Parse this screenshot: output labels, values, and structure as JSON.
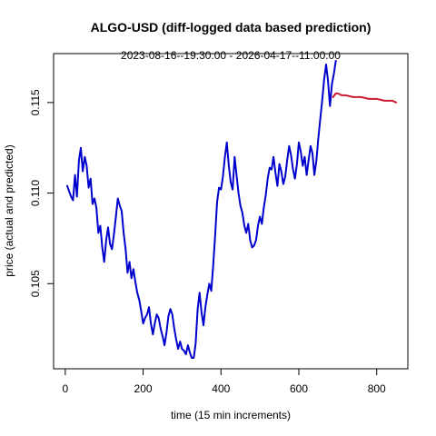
{
  "chart_data": {
    "type": "line",
    "title": "ALGO-USD (diff-logged data based prediction)",
    "subtitle": "2023-08-16--19:30:00  -  2026-04-17--11:00:00",
    "xlabel": "time (15 min increments)",
    "ylabel": "price (actual and predicted)",
    "xlim": [
      -30,
      880
    ],
    "ylim": [
      0.1003,
      0.1177
    ],
    "x_ticks": [
      0,
      200,
      400,
      600,
      800
    ],
    "x_tick_labels": [
      "0",
      "200",
      "400",
      "600",
      "800"
    ],
    "y_ticks": [
      0.105,
      0.11,
      0.115
    ],
    "y_tick_labels": [
      "0.105",
      "0.110",
      "0.115"
    ],
    "grid": false,
    "legend": "none",
    "series": [
      {
        "color": "#0000cc",
        "x": [
          5,
          10,
          15,
          20,
          25,
          30,
          35,
          40,
          45,
          50,
          55,
          60,
          65,
          70,
          75,
          80,
          85,
          90,
          95,
          100,
          105,
          110,
          115,
          120,
          125,
          130,
          135,
          140,
          145,
          150,
          155,
          160,
          165,
          170,
          175,
          180,
          185,
          190,
          195,
          200,
          205,
          210,
          215,
          220,
          225,
          230,
          235,
          240,
          245,
          250,
          255,
          260,
          265,
          270,
          275,
          280,
          285,
          290,
          295,
          300,
          305,
          310,
          315,
          320,
          325,
          330,
          335,
          340,
          345,
          350,
          355,
          360,
          365,
          370,
          375,
          380,
          385,
          390,
          395,
          400,
          405,
          410,
          415,
          420,
          425,
          430,
          435,
          440,
          445,
          450,
          455,
          460,
          465,
          470,
          475,
          480,
          485,
          490,
          495,
          500,
          505,
          510,
          515,
          520,
          525,
          530,
          535,
          540,
          545,
          550,
          555,
          560,
          565,
          570,
          575,
          580,
          585,
          590,
          595,
          600,
          605,
          610,
          615,
          620,
          625,
          630,
          635,
          640,
          645,
          650,
          655,
          660,
          665,
          670,
          675,
          680,
          685,
          690,
          695
        ],
        "y": [
          0.1104,
          0.1101,
          0.1098,
          0.1096,
          0.111,
          0.1098,
          0.1118,
          0.1125,
          0.1112,
          0.112,
          0.1115,
          0.1103,
          0.1108,
          0.1094,
          0.1097,
          0.1092,
          0.1078,
          0.1082,
          0.107,
          0.1062,
          0.1074,
          0.1081,
          0.1072,
          0.1069,
          0.1077,
          0.1087,
          0.1097,
          0.1093,
          0.109,
          0.1078,
          0.1069,
          0.1056,
          0.1062,
          0.1053,
          0.1058,
          0.1051,
          0.1045,
          0.1041,
          0.1035,
          0.1028,
          0.1031,
          0.1033,
          0.1037,
          0.1028,
          0.1022,
          0.1028,
          0.1033,
          0.1031,
          0.1025,
          0.1021,
          0.1016,
          0.1023,
          0.1032,
          0.1036,
          0.1033,
          0.1025,
          0.1019,
          0.1014,
          0.1018,
          0.1014,
          0.1013,
          0.1011,
          0.1016,
          0.1012,
          0.1009,
          0.1009,
          0.1017,
          0.1036,
          0.1045,
          0.1034,
          0.1027,
          0.1037,
          0.1044,
          0.105,
          0.1046,
          0.106,
          0.1077,
          0.1095,
          0.1103,
          0.1102,
          0.1109,
          0.112,
          0.1128,
          0.1115,
          0.1106,
          0.1102,
          0.112,
          0.111,
          0.11,
          0.1093,
          0.1089,
          0.1082,
          0.1078,
          0.1083,
          0.1074,
          0.107,
          0.1071,
          0.1074,
          0.1082,
          0.1087,
          0.1083,
          0.1092,
          0.1099,
          0.1108,
          0.1114,
          0.1113,
          0.112,
          0.1111,
          0.1104,
          0.1116,
          0.1112,
          0.1105,
          0.1109,
          0.1118,
          0.1126,
          0.1121,
          0.1113,
          0.1108,
          0.1116,
          0.1128,
          0.1123,
          0.1115,
          0.112,
          0.111,
          0.1118,
          0.1126,
          0.1122,
          0.111,
          0.1118,
          0.113,
          0.1141,
          0.1151,
          0.1163,
          0.1171,
          0.1162,
          0.1148,
          0.116,
          0.1166,
          0.1173
        ]
      },
      {
        "color": "#cc1a33",
        "x": [
          688,
          695,
          700,
          710,
          720,
          740,
          760,
          780,
          800,
          820,
          840,
          850
        ],
        "y": [
          0.1153,
          0.1155,
          0.1155,
          0.1154,
          0.1154,
          0.1153,
          0.1153,
          0.1152,
          0.1152,
          0.1151,
          0.1151,
          0.115
        ]
      }
    ]
  }
}
